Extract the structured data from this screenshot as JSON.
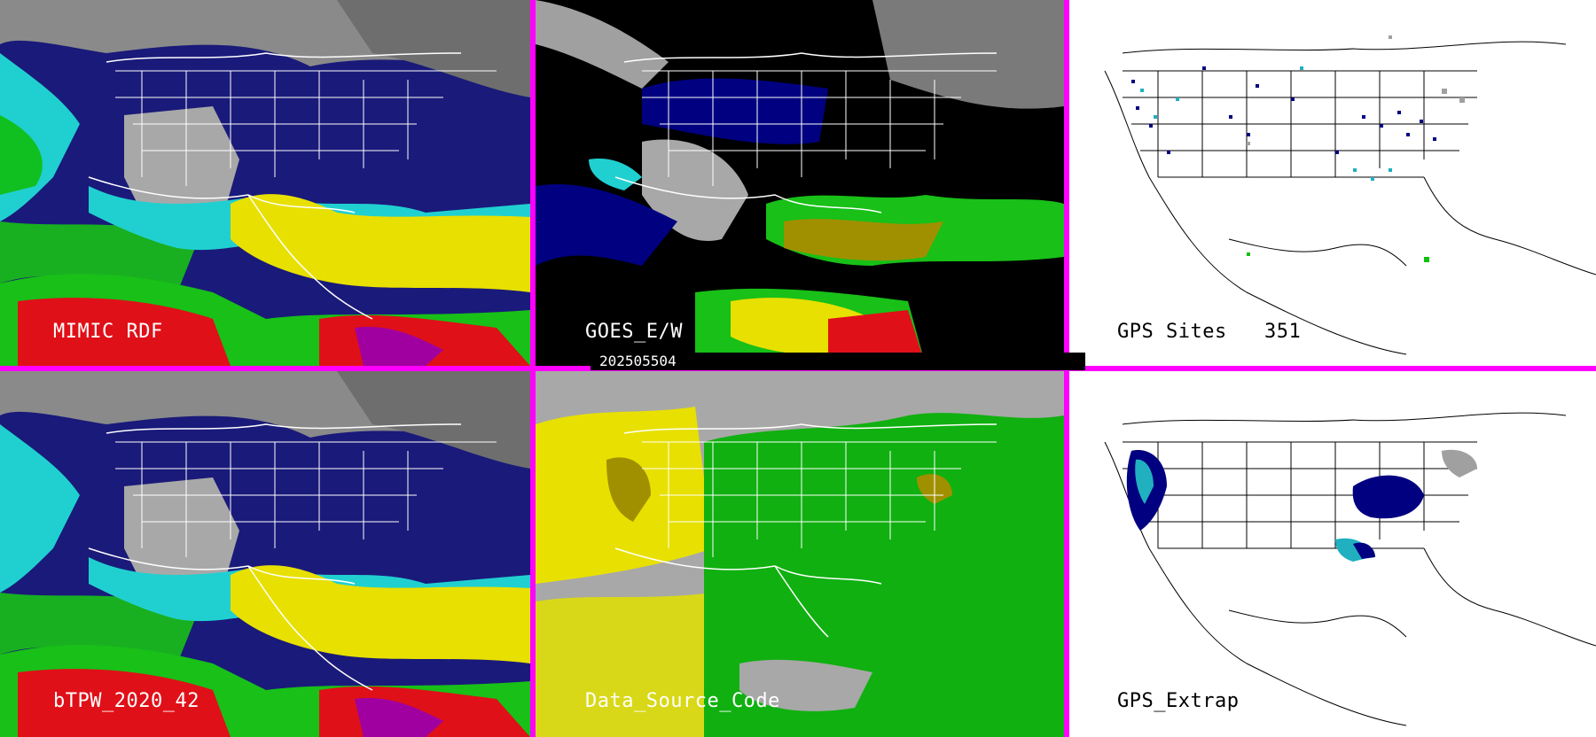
{
  "panels": {
    "mimic_rdf": {
      "label": "MIMIC RDF"
    },
    "goes_ew": {
      "label": "GOES_E/W"
    },
    "gps_sites": {
      "label": "GPS Sites",
      "count": "351"
    },
    "btpw": {
      "label": "bTPW_2020_42"
    },
    "data_source_code": {
      "label": "Data_Source_Code"
    },
    "gps_extrap": {
      "label": "GPS_Extrap"
    }
  },
  "timestamp": "202505504",
  "colors": {
    "separator": "#ff00ff",
    "moist_red": "#e0101a",
    "yellow": "#e8e000",
    "green": "#10c010",
    "cyan": "#20e0e0",
    "dark_blue": "#000080",
    "gray": "#a0a0a0",
    "olive": "#a09000"
  }
}
